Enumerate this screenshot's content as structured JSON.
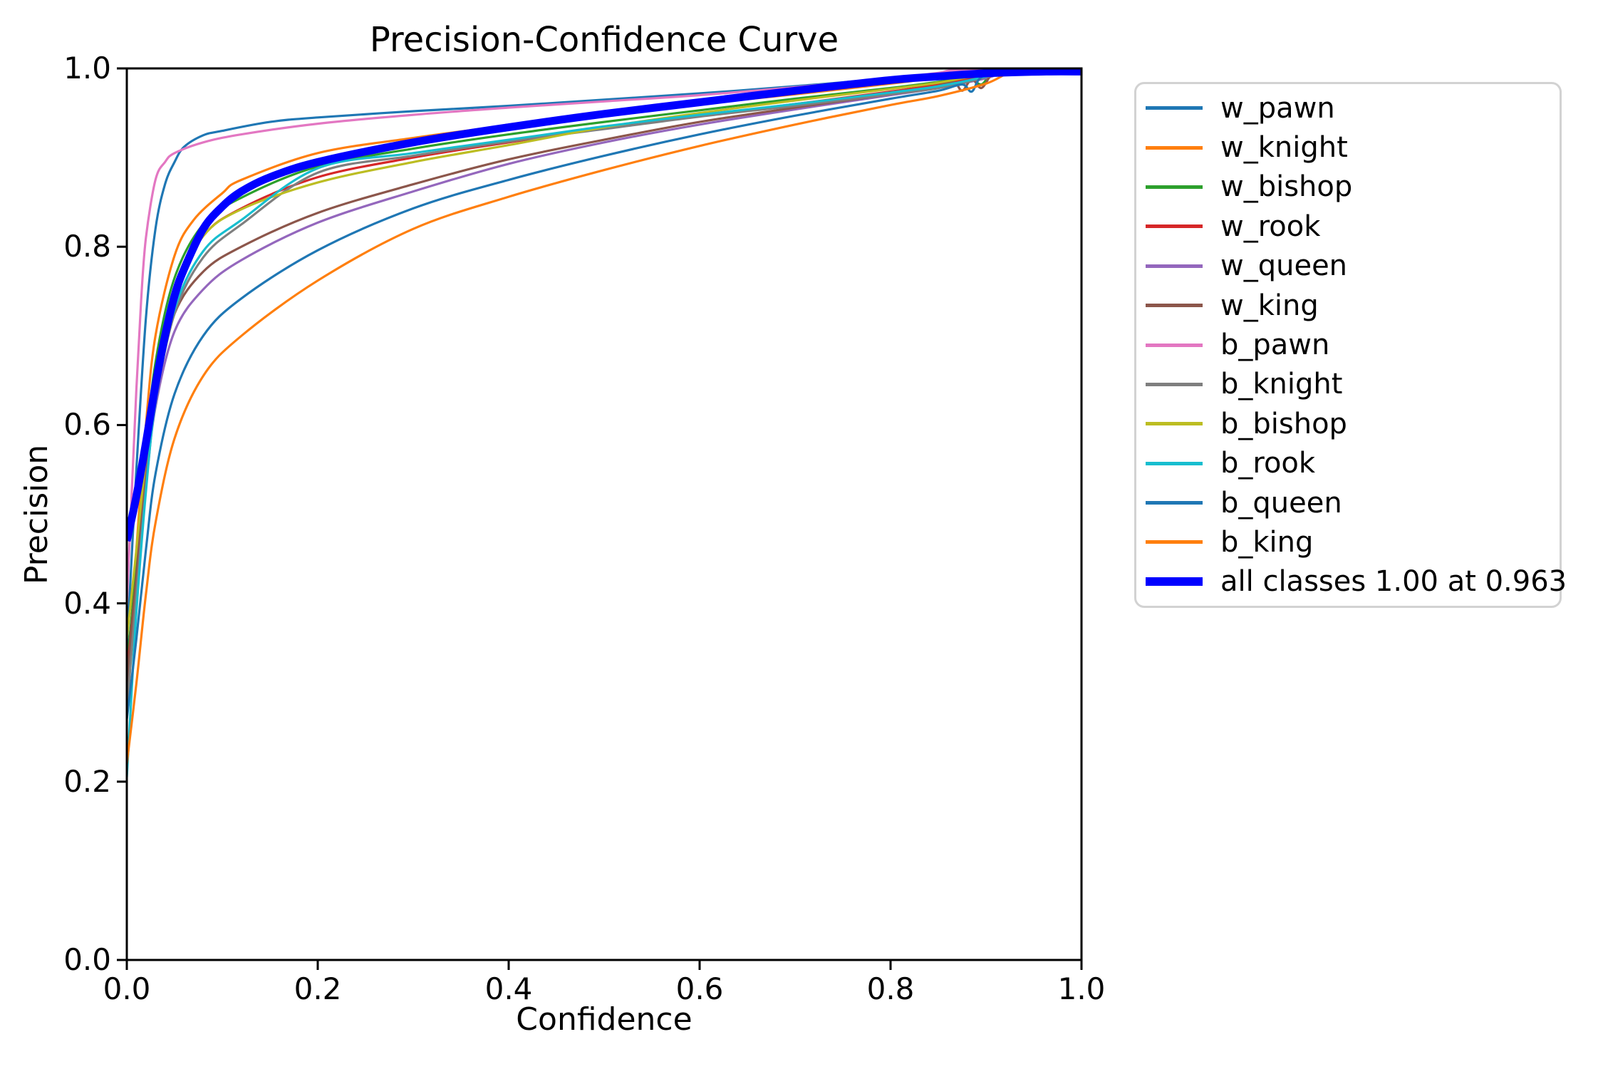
{
  "chart_data": {
    "type": "line",
    "title": "Precision-Confidence Curve",
    "xlabel": "Confidence",
    "ylabel": "Precision",
    "xlim": [
      0.0,
      1.0
    ],
    "ylim": [
      0.0,
      1.0
    ],
    "x_ticks": [
      "0.0",
      "0.2",
      "0.4",
      "0.6",
      "0.8",
      "1.0"
    ],
    "y_ticks": [
      "0.0",
      "0.2",
      "0.4",
      "0.6",
      "0.8",
      "1.0"
    ],
    "grid": false,
    "legend_position": "outside-right",
    "axis_color": "#000000",
    "legend_border_color": "#d2d2d2",
    "series": [
      {
        "name": "w_pawn",
        "color": "#1f77b4",
        "lw": 3.2,
        "points": [
          [
            0,
            0.35
          ],
          [
            0.005,
            0.45
          ],
          [
            0.01,
            0.55
          ],
          [
            0.02,
            0.72
          ],
          [
            0.03,
            0.82
          ],
          [
            0.04,
            0.87
          ],
          [
            0.05,
            0.895
          ],
          [
            0.06,
            0.912
          ],
          [
            0.08,
            0.925
          ],
          [
            0.1,
            0.93
          ],
          [
            0.15,
            0.94
          ],
          [
            0.2,
            0.945
          ],
          [
            0.3,
            0.952
          ],
          [
            0.4,
            0.958
          ],
          [
            0.5,
            0.965
          ],
          [
            0.6,
            0.972
          ],
          [
            0.7,
            0.98
          ],
          [
            0.8,
            0.989
          ],
          [
            0.85,
            0.994
          ],
          [
            0.88,
            0.997
          ],
          [
            0.9,
            0.998
          ],
          [
            1,
            0.998
          ]
        ]
      },
      {
        "name": "w_knight",
        "color": "#ff7f0e",
        "lw": 3.2,
        "points": [
          [
            0,
            0.3
          ],
          [
            0.01,
            0.46
          ],
          [
            0.02,
            0.6
          ],
          [
            0.03,
            0.7
          ],
          [
            0.05,
            0.79
          ],
          [
            0.07,
            0.83
          ],
          [
            0.1,
            0.86
          ],
          [
            0.12,
            0.875
          ],
          [
            0.2,
            0.905
          ],
          [
            0.3,
            0.922
          ],
          [
            0.4,
            0.936
          ],
          [
            0.5,
            0.948
          ],
          [
            0.6,
            0.96
          ],
          [
            0.7,
            0.971
          ],
          [
            0.8,
            0.983
          ],
          [
            0.83,
            0.987
          ],
          [
            0.86,
            0.991
          ],
          [
            0.88,
            0.995
          ],
          [
            0.9,
            0.998
          ],
          [
            1,
            0.998
          ]
        ]
      },
      {
        "name": "w_bishop",
        "color": "#2ca02c",
        "lw": 3.2,
        "points": [
          [
            0,
            0.33
          ],
          [
            0.01,
            0.44
          ],
          [
            0.02,
            0.57
          ],
          [
            0.03,
            0.67
          ],
          [
            0.05,
            0.765
          ],
          [
            0.08,
            0.825
          ],
          [
            0.12,
            0.855
          ],
          [
            0.2,
            0.89
          ],
          [
            0.3,
            0.91
          ],
          [
            0.4,
            0.926
          ],
          [
            0.5,
            0.94
          ],
          [
            0.6,
            0.953
          ],
          [
            0.7,
            0.966
          ],
          [
            0.8,
            0.978
          ],
          [
            0.85,
            0.985
          ],
          [
            0.88,
            0.99
          ],
          [
            0.895,
            0.982
          ],
          [
            0.905,
            0.995
          ],
          [
            0.915,
            0.998
          ],
          [
            1,
            0.998
          ]
        ]
      },
      {
        "name": "w_rook",
        "color": "#d62728",
        "lw": 3.2,
        "points": [
          [
            0,
            0.32
          ],
          [
            0.01,
            0.43
          ],
          [
            0.02,
            0.555
          ],
          [
            0.03,
            0.655
          ],
          [
            0.05,
            0.75
          ],
          [
            0.08,
            0.812
          ],
          [
            0.12,
            0.843
          ],
          [
            0.2,
            0.878
          ],
          [
            0.3,
            0.9
          ],
          [
            0.4,
            0.917
          ],
          [
            0.5,
            0.933
          ],
          [
            0.6,
            0.947
          ],
          [
            0.7,
            0.96
          ],
          [
            0.8,
            0.974
          ],
          [
            0.85,
            0.982
          ],
          [
            0.9,
            0.992
          ],
          [
            0.92,
            0.998
          ],
          [
            1,
            0.998
          ]
        ]
      },
      {
        "name": "w_queen",
        "color": "#9467bd",
        "lw": 3.2,
        "points": [
          [
            0,
            0.3
          ],
          [
            0.01,
            0.41
          ],
          [
            0.02,
            0.53
          ],
          [
            0.03,
            0.62
          ],
          [
            0.05,
            0.705
          ],
          [
            0.08,
            0.752
          ],
          [
            0.12,
            0.785
          ],
          [
            0.2,
            0.827
          ],
          [
            0.3,
            0.862
          ],
          [
            0.4,
            0.893
          ],
          [
            0.5,
            0.917
          ],
          [
            0.6,
            0.937
          ],
          [
            0.7,
            0.954
          ],
          [
            0.8,
            0.97
          ],
          [
            0.85,
            0.978
          ],
          [
            0.9,
            0.989
          ],
          [
            0.93,
            0.998
          ],
          [
            1,
            0.998
          ]
        ]
      },
      {
        "name": "w_king",
        "color": "#8c564b",
        "lw": 3.2,
        "points": [
          [
            0,
            0.31
          ],
          [
            0.01,
            0.43
          ],
          [
            0.02,
            0.55
          ],
          [
            0.03,
            0.64
          ],
          [
            0.05,
            0.725
          ],
          [
            0.08,
            0.772
          ],
          [
            0.12,
            0.8
          ],
          [
            0.2,
            0.838
          ],
          [
            0.3,
            0.87
          ],
          [
            0.4,
            0.898
          ],
          [
            0.5,
            0.92
          ],
          [
            0.6,
            0.94
          ],
          [
            0.7,
            0.956
          ],
          [
            0.8,
            0.971
          ],
          [
            0.84,
            0.977
          ],
          [
            0.865,
            0.985
          ],
          [
            0.875,
            0.975
          ],
          [
            0.885,
            0.988
          ],
          [
            0.895,
            0.978
          ],
          [
            0.905,
            0.992
          ],
          [
            0.915,
            0.998
          ],
          [
            1,
            0.998
          ]
        ]
      },
      {
        "name": "b_pawn",
        "color": "#e377c2",
        "lw": 3.2,
        "points": [
          [
            0,
            0.4
          ],
          [
            0.005,
            0.52
          ],
          [
            0.01,
            0.64
          ],
          [
            0.015,
            0.74
          ],
          [
            0.02,
            0.81
          ],
          [
            0.03,
            0.875
          ],
          [
            0.04,
            0.895
          ],
          [
            0.05,
            0.905
          ],
          [
            0.08,
            0.917
          ],
          [
            0.12,
            0.926
          ],
          [
            0.2,
            0.938
          ],
          [
            0.3,
            0.948
          ],
          [
            0.4,
            0.956
          ],
          [
            0.5,
            0.963
          ],
          [
            0.6,
            0.97
          ],
          [
            0.7,
            0.979
          ],
          [
            0.8,
            0.989
          ],
          [
            0.85,
            0.995
          ],
          [
            0.875,
            0.998
          ],
          [
            1,
            0.998
          ]
        ]
      },
      {
        "name": "b_knight",
        "color": "#7f7f7f",
        "lw": 3.2,
        "points": [
          [
            0,
            0.28
          ],
          [
            0.01,
            0.41
          ],
          [
            0.02,
            0.53
          ],
          [
            0.03,
            0.625
          ],
          [
            0.05,
            0.725
          ],
          [
            0.08,
            0.788
          ],
          [
            0.12,
            0.825
          ],
          [
            0.2,
            0.883
          ],
          [
            0.3,
            0.902
          ],
          [
            0.4,
            0.918
          ],
          [
            0.5,
            0.932
          ],
          [
            0.6,
            0.946
          ],
          [
            0.7,
            0.958
          ],
          [
            0.8,
            0.971
          ],
          [
            0.85,
            0.978
          ],
          [
            0.9,
            0.99
          ],
          [
            0.925,
            0.998
          ],
          [
            1,
            0.998
          ]
        ]
      },
      {
        "name": "b_bishop",
        "color": "#bcbd22",
        "lw": 3.2,
        "points": [
          [
            0,
            0.36
          ],
          [
            0.01,
            0.46
          ],
          [
            0.02,
            0.565
          ],
          [
            0.03,
            0.655
          ],
          [
            0.05,
            0.752
          ],
          [
            0.08,
            0.812
          ],
          [
            0.12,
            0.842
          ],
          [
            0.2,
            0.872
          ],
          [
            0.3,
            0.895
          ],
          [
            0.4,
            0.914
          ],
          [
            0.5,
            0.934
          ],
          [
            0.6,
            0.95
          ],
          [
            0.7,
            0.964
          ],
          [
            0.8,
            0.977
          ],
          [
            0.85,
            0.984
          ],
          [
            0.9,
            0.994
          ],
          [
            0.92,
            0.998
          ],
          [
            1,
            0.998
          ]
        ]
      },
      {
        "name": "b_rook",
        "color": "#17becf",
        "lw": 3.2,
        "points": [
          [
            0,
            0.205
          ],
          [
            0.005,
            0.3
          ],
          [
            0.01,
            0.39
          ],
          [
            0.02,
            0.525
          ],
          [
            0.03,
            0.625
          ],
          [
            0.05,
            0.73
          ],
          [
            0.08,
            0.795
          ],
          [
            0.12,
            0.83
          ],
          [
            0.2,
            0.888
          ],
          [
            0.3,
            0.905
          ],
          [
            0.4,
            0.92
          ],
          [
            0.5,
            0.935
          ],
          [
            0.6,
            0.948
          ],
          [
            0.7,
            0.96
          ],
          [
            0.8,
            0.973
          ],
          [
            0.85,
            0.98
          ],
          [
            0.9,
            0.991
          ],
          [
            0.92,
            0.998
          ],
          [
            1,
            0.998
          ]
        ]
      },
      {
        "name": "b_queen",
        "color": "#1f77b4",
        "lw": 3.2,
        "points": [
          [
            0,
            0.27
          ],
          [
            0.01,
            0.36
          ],
          [
            0.02,
            0.46
          ],
          [
            0.03,
            0.545
          ],
          [
            0.05,
            0.635
          ],
          [
            0.08,
            0.7
          ],
          [
            0.12,
            0.742
          ],
          [
            0.2,
            0.796
          ],
          [
            0.3,
            0.843
          ],
          [
            0.4,
            0.875
          ],
          [
            0.5,
            0.902
          ],
          [
            0.6,
            0.926
          ],
          [
            0.7,
            0.947
          ],
          [
            0.8,
            0.966
          ],
          [
            0.85,
            0.975
          ],
          [
            0.875,
            0.982
          ],
          [
            0.885,
            0.974
          ],
          [
            0.895,
            0.99
          ],
          [
            0.92,
            0.998
          ],
          [
            1,
            0.998
          ]
        ]
      },
      {
        "name": "b_king",
        "color": "#ff7f0e",
        "lw": 3.2,
        "points": [
          [
            0,
            0.22
          ],
          [
            0.01,
            0.31
          ],
          [
            0.02,
            0.41
          ],
          [
            0.03,
            0.49
          ],
          [
            0.05,
            0.585
          ],
          [
            0.08,
            0.655
          ],
          [
            0.12,
            0.7
          ],
          [
            0.2,
            0.762
          ],
          [
            0.3,
            0.82
          ],
          [
            0.4,
            0.856
          ],
          [
            0.5,
            0.886
          ],
          [
            0.6,
            0.913
          ],
          [
            0.7,
            0.937
          ],
          [
            0.8,
            0.959
          ],
          [
            0.85,
            0.969
          ],
          [
            0.9,
            0.983
          ],
          [
            0.935,
            0.998
          ],
          [
            1,
            0.998
          ]
        ]
      },
      {
        "name": "all classes 1.00 at 0.963",
        "color": "#0000ff",
        "lw": 11,
        "points": [
          [
            0,
            0.47
          ],
          [
            0.01,
            0.52
          ],
          [
            0.02,
            0.58
          ],
          [
            0.03,
            0.645
          ],
          [
            0.04,
            0.7
          ],
          [
            0.05,
            0.745
          ],
          [
            0.06,
            0.775
          ],
          [
            0.08,
            0.82
          ],
          [
            0.1,
            0.845
          ],
          [
            0.12,
            0.862
          ],
          [
            0.15,
            0.878
          ],
          [
            0.2,
            0.895
          ],
          [
            0.3,
            0.917
          ],
          [
            0.4,
            0.934
          ],
          [
            0.5,
            0.949
          ],
          [
            0.6,
            0.962
          ],
          [
            0.7,
            0.975
          ],
          [
            0.8,
            0.987
          ],
          [
            0.85,
            0.991
          ],
          [
            0.9,
            0.9945
          ],
          [
            0.963,
            0.9965
          ],
          [
            1,
            0.9965
          ]
        ]
      }
    ]
  }
}
